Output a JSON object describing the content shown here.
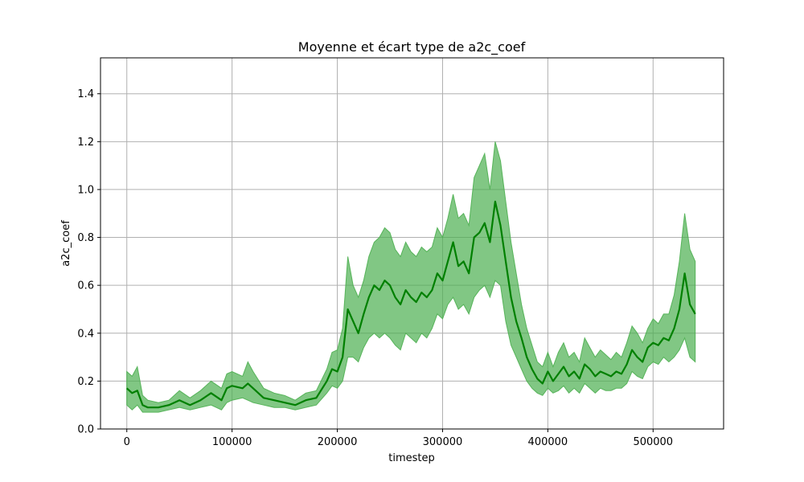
{
  "chart_data": {
    "type": "line",
    "title": "Moyenne et écart type de a2c_coef",
    "xlabel": "timestep",
    "ylabel": "a2c_coef",
    "xlim": [
      -25000,
      567000
    ],
    "ylim": [
      0,
      1.55
    ],
    "xticks": [
      0,
      100000,
      200000,
      300000,
      400000,
      500000
    ],
    "yticks": [
      0.0,
      0.2,
      0.4,
      0.6,
      0.8,
      1.0,
      1.2,
      1.4
    ],
    "xtick_labels": [
      "0",
      "100000",
      "200000",
      "300000",
      "400000",
      "500000"
    ],
    "ytick_labels": [
      "0.0",
      "0.2",
      "0.4",
      "0.6",
      "0.8",
      "1.0",
      "1.2",
      "1.4"
    ],
    "grid": true,
    "colors": {
      "line": "#008000",
      "band": "#4caf50"
    },
    "series": [
      {
        "x": [
          0,
          5000,
          10000,
          15000,
          20000,
          30000,
          40000,
          50000,
          60000,
          70000,
          80000,
          90000,
          95000,
          100000,
          110000,
          115000,
          120000,
          130000,
          140000,
          150000,
          160000,
          170000,
          180000,
          190000,
          195000,
          200000,
          205000,
          210000,
          215000,
          220000,
          225000,
          230000,
          235000,
          240000,
          245000,
          250000,
          255000,
          260000,
          265000,
          270000,
          275000,
          280000,
          285000,
          290000,
          295000,
          300000,
          305000,
          310000,
          315000,
          320000,
          325000,
          330000,
          335000,
          340000,
          345000,
          350000,
          355000,
          360000,
          365000,
          370000,
          375000,
          380000,
          385000,
          390000,
          395000,
          400000,
          405000,
          410000,
          415000,
          420000,
          425000,
          430000,
          435000,
          440000,
          445000,
          450000,
          455000,
          460000,
          465000,
          470000,
          475000,
          480000,
          485000,
          490000,
          495000,
          500000,
          505000,
          510000,
          515000,
          520000,
          525000,
          530000,
          535000,
          540000
        ],
        "mean": [
          0.17,
          0.15,
          0.16,
          0.1,
          0.09,
          0.09,
          0.1,
          0.12,
          0.1,
          0.12,
          0.15,
          0.12,
          0.17,
          0.18,
          0.17,
          0.19,
          0.17,
          0.13,
          0.12,
          0.11,
          0.1,
          0.12,
          0.13,
          0.2,
          0.25,
          0.24,
          0.3,
          0.5,
          0.45,
          0.4,
          0.48,
          0.55,
          0.6,
          0.58,
          0.62,
          0.6,
          0.55,
          0.52,
          0.58,
          0.55,
          0.53,
          0.57,
          0.55,
          0.58,
          0.65,
          0.62,
          0.7,
          0.78,
          0.68,
          0.7,
          0.65,
          0.8,
          0.82,
          0.86,
          0.78,
          0.95,
          0.85,
          0.7,
          0.55,
          0.45,
          0.38,
          0.3,
          0.25,
          0.21,
          0.19,
          0.24,
          0.2,
          0.23,
          0.26,
          0.22,
          0.24,
          0.21,
          0.27,
          0.25,
          0.22,
          0.24,
          0.23,
          0.22,
          0.24,
          0.23,
          0.27,
          0.33,
          0.3,
          0.28,
          0.34,
          0.36,
          0.35,
          0.38,
          0.37,
          0.42,
          0.5,
          0.65,
          0.52,
          0.48
        ],
        "lower": [
          0.1,
          0.08,
          0.1,
          0.07,
          0.07,
          0.07,
          0.08,
          0.09,
          0.08,
          0.09,
          0.1,
          0.08,
          0.11,
          0.12,
          0.13,
          0.12,
          0.11,
          0.1,
          0.09,
          0.09,
          0.08,
          0.09,
          0.1,
          0.15,
          0.18,
          0.17,
          0.2,
          0.3,
          0.3,
          0.28,
          0.34,
          0.38,
          0.4,
          0.38,
          0.4,
          0.38,
          0.35,
          0.33,
          0.4,
          0.38,
          0.36,
          0.4,
          0.38,
          0.42,
          0.48,
          0.46,
          0.52,
          0.55,
          0.5,
          0.52,
          0.48,
          0.55,
          0.58,
          0.6,
          0.55,
          0.62,
          0.6,
          0.45,
          0.35,
          0.3,
          0.25,
          0.2,
          0.17,
          0.15,
          0.14,
          0.17,
          0.15,
          0.16,
          0.18,
          0.15,
          0.17,
          0.15,
          0.19,
          0.17,
          0.15,
          0.17,
          0.16,
          0.16,
          0.17,
          0.17,
          0.19,
          0.24,
          0.22,
          0.21,
          0.26,
          0.28,
          0.27,
          0.3,
          0.28,
          0.3,
          0.33,
          0.38,
          0.3,
          0.28
        ],
        "upper": [
          0.24,
          0.22,
          0.26,
          0.14,
          0.12,
          0.11,
          0.12,
          0.16,
          0.13,
          0.16,
          0.2,
          0.17,
          0.23,
          0.24,
          0.22,
          0.28,
          0.24,
          0.17,
          0.15,
          0.14,
          0.12,
          0.15,
          0.16,
          0.25,
          0.32,
          0.33,
          0.42,
          0.72,
          0.6,
          0.55,
          0.62,
          0.72,
          0.78,
          0.8,
          0.84,
          0.82,
          0.75,
          0.72,
          0.78,
          0.74,
          0.72,
          0.76,
          0.74,
          0.76,
          0.84,
          0.8,
          0.88,
          0.98,
          0.88,
          0.9,
          0.85,
          1.05,
          1.1,
          1.15,
          1.0,
          1.2,
          1.12,
          0.95,
          0.78,
          0.65,
          0.52,
          0.42,
          0.35,
          0.28,
          0.26,
          0.32,
          0.26,
          0.32,
          0.36,
          0.3,
          0.32,
          0.28,
          0.38,
          0.34,
          0.3,
          0.33,
          0.31,
          0.29,
          0.32,
          0.3,
          0.36,
          0.43,
          0.4,
          0.36,
          0.42,
          0.46,
          0.44,
          0.48,
          0.48,
          0.56,
          0.7,
          0.9,
          0.75,
          0.7
        ]
      }
    ]
  }
}
